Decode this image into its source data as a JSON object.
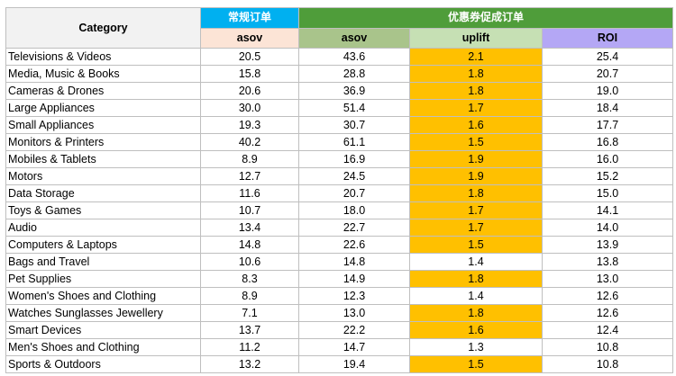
{
  "headers": {
    "category": "Category",
    "regular_group": "常规订单",
    "promo_group": "优惠券促成订单",
    "regular_asov": "asov",
    "promo_asov": "asov",
    "uplift": "uplift",
    "roi": "ROI"
  },
  "colors": {
    "regular_header": "#00b0f0",
    "promo_header": "#4f9d3a",
    "uplift_highlight": "#ffc000",
    "roi_header": "#b4a7f5"
  },
  "rows": [
    {
      "category": "Televisions & Videos",
      "asov_regular": "20.5",
      "asov_promo": "43.6",
      "uplift": "2.1",
      "roi": "25.4",
      "highlight": true
    },
    {
      "category": "Media, Music & Books",
      "asov_regular": "15.8",
      "asov_promo": "28.8",
      "uplift": "1.8",
      "roi": "20.7",
      "highlight": true
    },
    {
      "category": "Cameras & Drones",
      "asov_regular": "20.6",
      "asov_promo": "36.9",
      "uplift": "1.8",
      "roi": "19.0",
      "highlight": true
    },
    {
      "category": "Large Appliances",
      "asov_regular": "30.0",
      "asov_promo": "51.4",
      "uplift": "1.7",
      "roi": "18.4",
      "highlight": true
    },
    {
      "category": "Small Appliances",
      "asov_regular": "19.3",
      "asov_promo": "30.7",
      "uplift": "1.6",
      "roi": "17.7",
      "highlight": true
    },
    {
      "category": "Monitors & Printers",
      "asov_regular": "40.2",
      "asov_promo": "61.1",
      "uplift": "1.5",
      "roi": "16.8",
      "highlight": true
    },
    {
      "category": "Mobiles & Tablets",
      "asov_regular": "8.9",
      "asov_promo": "16.9",
      "uplift": "1.9",
      "roi": "16.0",
      "highlight": true
    },
    {
      "category": "Motors",
      "asov_regular": "12.7",
      "asov_promo": "24.5",
      "uplift": "1.9",
      "roi": "15.2",
      "highlight": true
    },
    {
      "category": "Data Storage",
      "asov_regular": "11.6",
      "asov_promo": "20.7",
      "uplift": "1.8",
      "roi": "15.0",
      "highlight": true
    },
    {
      "category": "Toys & Games",
      "asov_regular": "10.7",
      "asov_promo": "18.0",
      "uplift": "1.7",
      "roi": "14.1",
      "highlight": true
    },
    {
      "category": "Audio",
      "asov_regular": "13.4",
      "asov_promo": "22.7",
      "uplift": "1.7",
      "roi": "14.0",
      "highlight": true
    },
    {
      "category": "Computers & Laptops",
      "asov_regular": "14.8",
      "asov_promo": "22.6",
      "uplift": "1.5",
      "roi": "13.9",
      "highlight": true
    },
    {
      "category": "Bags and Travel",
      "asov_regular": "10.6",
      "asov_promo": "14.8",
      "uplift": "1.4",
      "roi": "13.8",
      "highlight": false
    },
    {
      "category": "Pet Supplies",
      "asov_regular": "8.3",
      "asov_promo": "14.9",
      "uplift": "1.8",
      "roi": "13.0",
      "highlight": true
    },
    {
      "category": "Women's Shoes and Clothing",
      "asov_regular": "8.9",
      "asov_promo": "12.3",
      "uplift": "1.4",
      "roi": "12.6",
      "highlight": false
    },
    {
      "category": "Watches Sunglasses Jewellery",
      "asov_regular": "7.1",
      "asov_promo": "13.0",
      "uplift": "1.8",
      "roi": "12.6",
      "highlight": true
    },
    {
      "category": "Smart Devices",
      "asov_regular": "13.7",
      "asov_promo": "22.2",
      "uplift": "1.6",
      "roi": "12.4",
      "highlight": true
    },
    {
      "category": "Men's Shoes and Clothing",
      "asov_regular": "11.2",
      "asov_promo": "14.7",
      "uplift": "1.3",
      "roi": "10.8",
      "highlight": false
    },
    {
      "category": "Sports & Outdoors",
      "asov_regular": "13.2",
      "asov_promo": "19.4",
      "uplift": "1.5",
      "roi": "10.8",
      "highlight": true
    }
  ]
}
